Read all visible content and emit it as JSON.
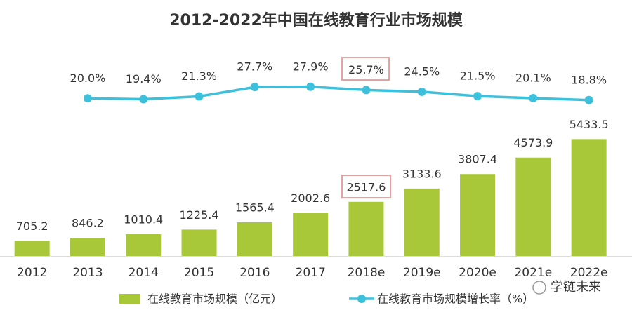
{
  "chart_data": {
    "type": "bar-line",
    "title": "2012-2022年中国在线教育行业市场规模",
    "categories": [
      "2012",
      "2013",
      "2014",
      "2015",
      "2016",
      "2017",
      "2018e",
      "2019e",
      "2020e",
      "2021e",
      "2022e"
    ],
    "series": [
      {
        "name": "在线教育市场规模（亿元）",
        "type": "bar",
        "color": "#a8c83a",
        "values": [
          705.2,
          846.2,
          1010.4,
          1225.4,
          1565.4,
          2002.6,
          2517.6,
          3133.6,
          3807.4,
          4573.9,
          5433.5
        ]
      },
      {
        "name": "在线教育市场规模增长率（%）",
        "type": "line",
        "axis": "y2",
        "color": "#3cc0dc",
        "values": [
          null,
          20.0,
          19.4,
          21.3,
          27.7,
          27.9,
          25.7,
          24.5,
          21.5,
          20.1,
          18.8
        ],
        "value_labels": [
          null,
          "20.0%",
          "19.4%",
          "21.3%",
          "27.7%",
          "27.9%",
          "25.7%",
          "24.5%",
          "21.5%",
          "20.1%",
          "18.8%"
        ]
      }
    ],
    "ylim": [
      0,
      6000
    ],
    "y2lim": [
      0,
      40
    ],
    "legend": "bottom",
    "watermark": "学链未来"
  }
}
